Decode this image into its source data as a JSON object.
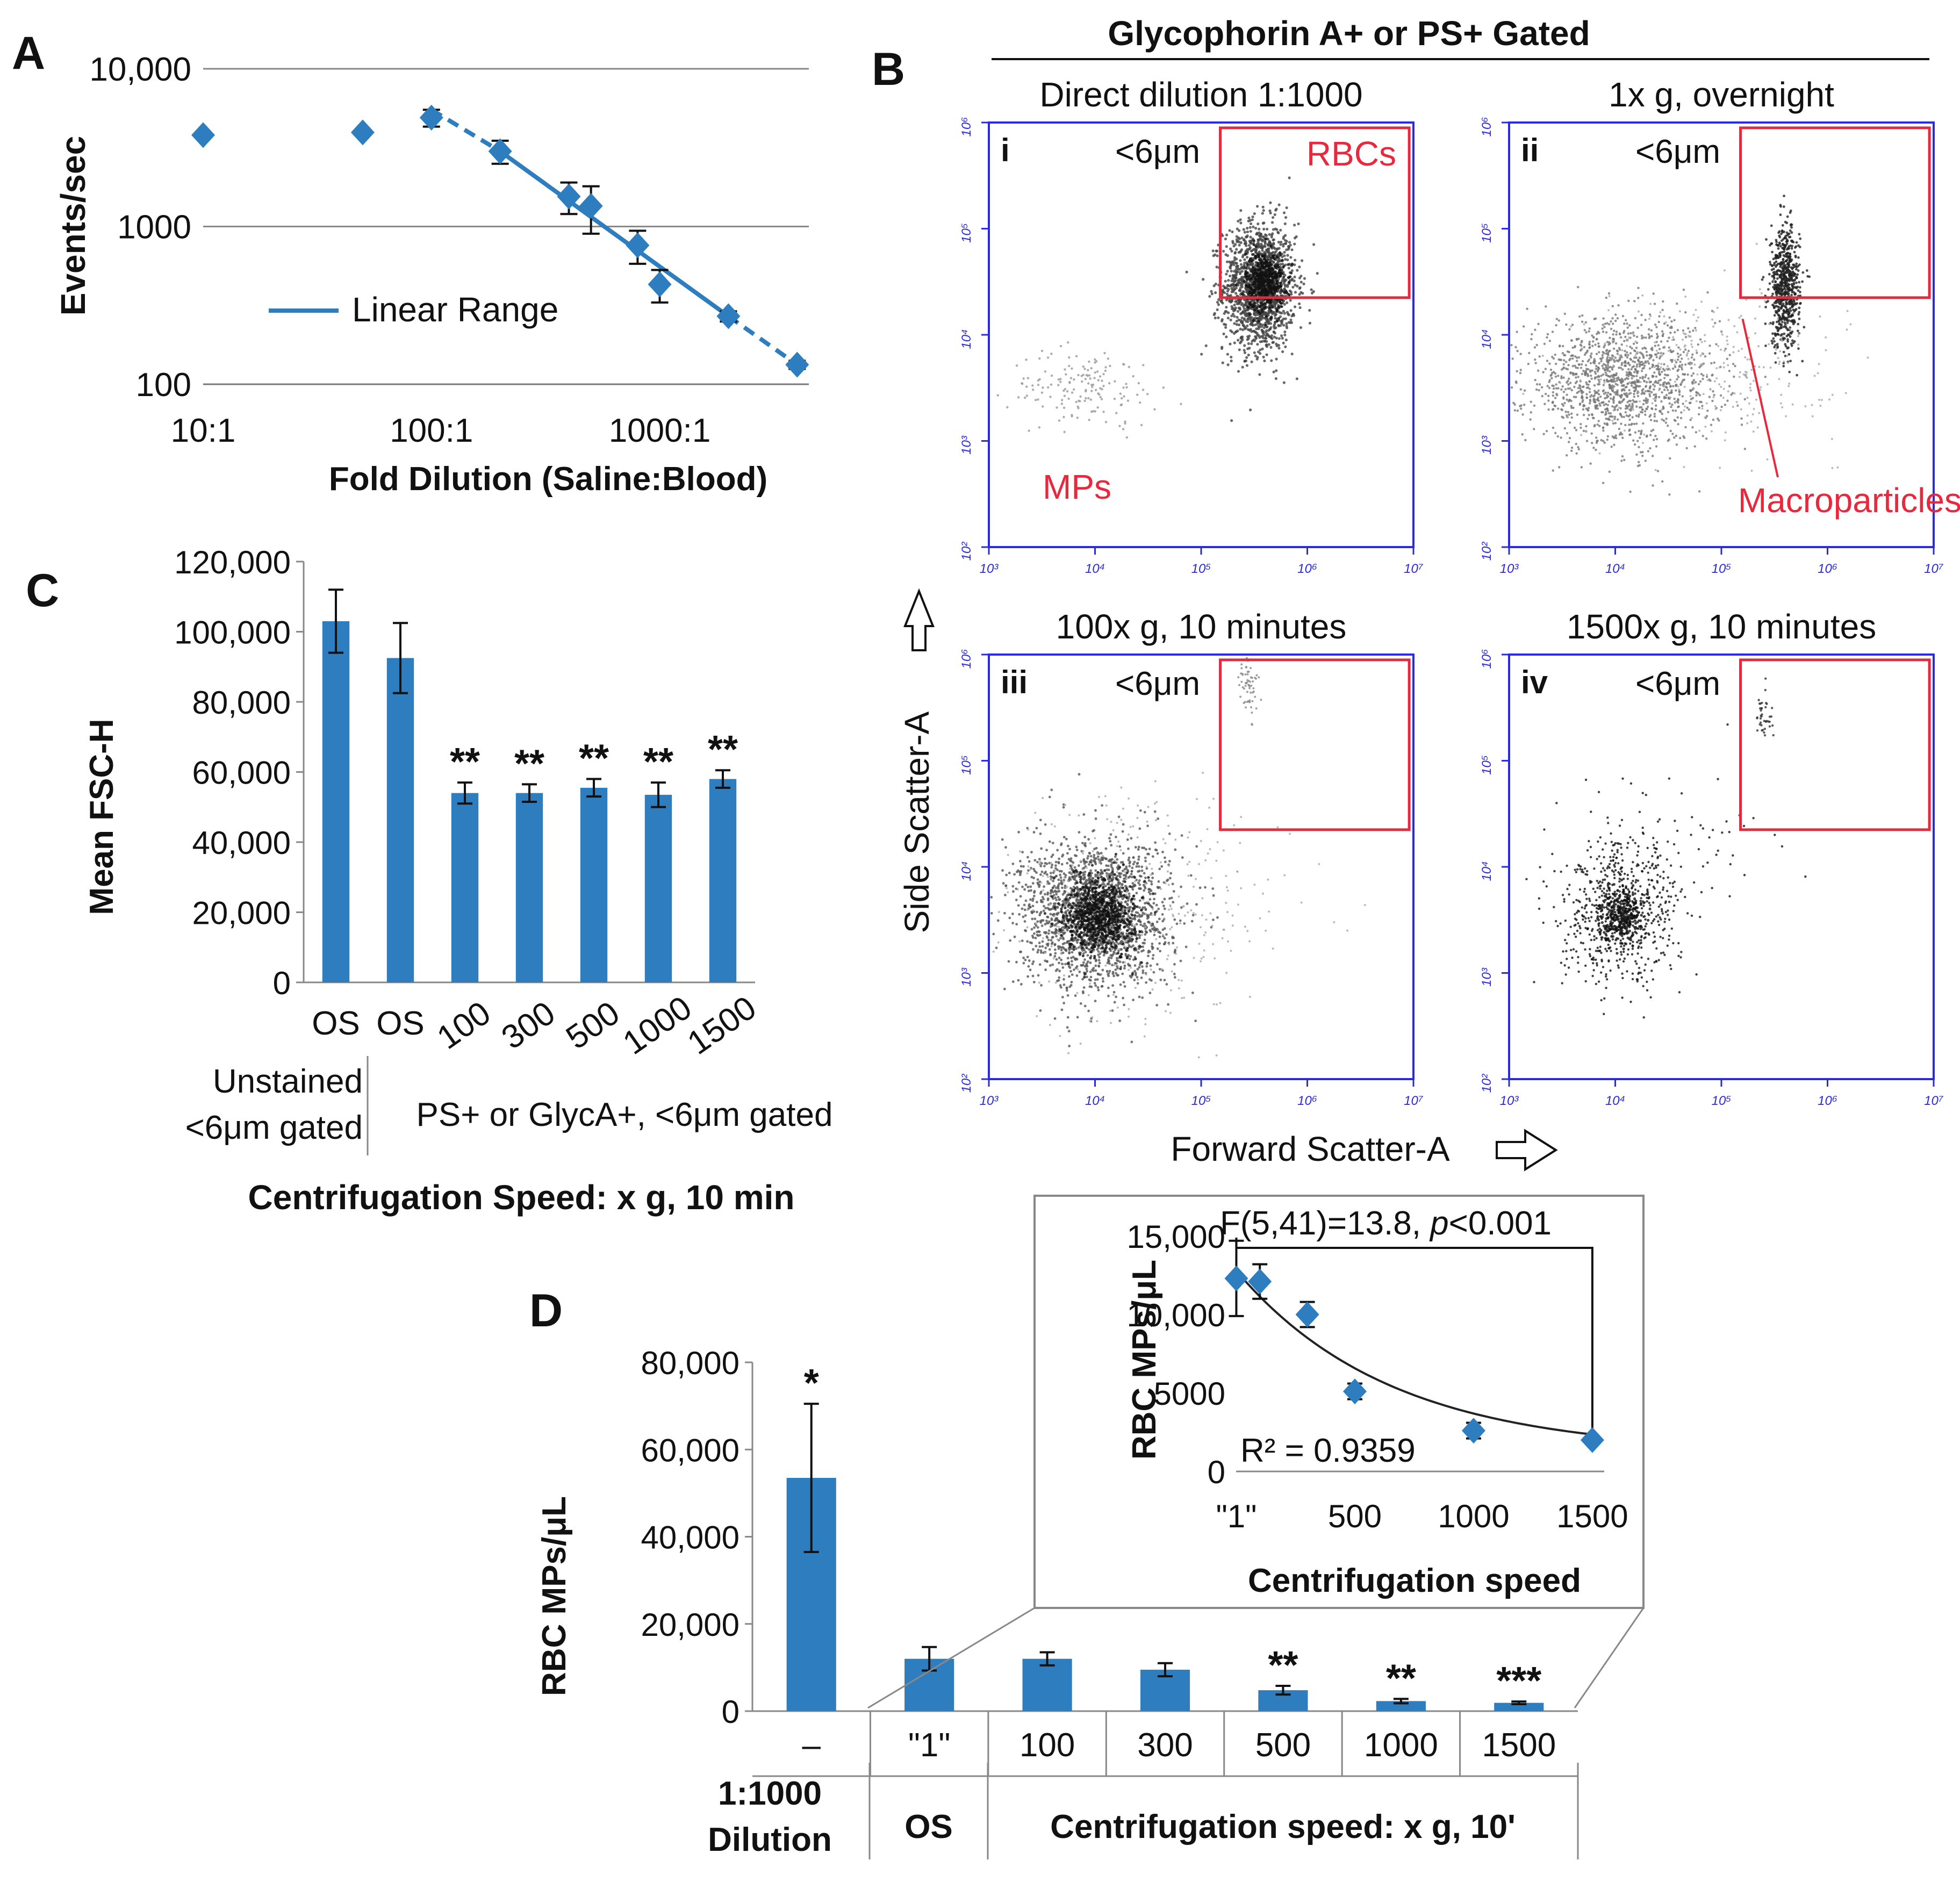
{
  "colors": {
    "bar": "#2e7ebf",
    "marker": "#2e7ebf",
    "gate": "#e8283c",
    "plot_frame": "#2b2bd9",
    "text": "#111111",
    "axis": "#666666",
    "dots": "#333333"
  },
  "panels": {
    "a": {
      "letter": "A"
    },
    "b": {
      "letter": "B",
      "header": "Glycophorin A+ or PS+ Gated",
      "y_axis_label": "Side Scatter-A",
      "x_axis_label": "Forward Scatter-A",
      "tick_labels": [
        "10³",
        "10⁴",
        "10⁵",
        "10⁶",
        "10⁷"
      ],
      "y_tick_labels": [
        "10²",
        "10³",
        "10⁴",
        "10⁵",
        "10⁶"
      ],
      "subplots": [
        {
          "numeral": "i",
          "title": "Direct dilution 1:1000",
          "size_label": "<6μm",
          "gate_label": "RBCs",
          "extra_label": "MPs"
        },
        {
          "numeral": "ii",
          "title": "1x g, overnight",
          "size_label": "<6μm",
          "gate_label": "",
          "extra_label": "Macroparticles"
        },
        {
          "numeral": "iii",
          "title": "100x g, 10 minutes",
          "size_label": "<6μm",
          "gate_label": "",
          "extra_label": ""
        },
        {
          "numeral": "iv",
          "title": "1500x g, 10 minutes",
          "size_label": "<6μm",
          "gate_label": "",
          "extra_label": ""
        }
      ]
    },
    "c": {
      "letter": "C"
    },
    "d": {
      "letter": "D"
    }
  },
  "chart_data": [
    {
      "id": "A",
      "type": "scatter",
      "xscale": "log",
      "yscale": "log",
      "xlabel": "Fold Dilution (Saline:Blood)",
      "ylabel": "Events/sec",
      "xlim": [
        10,
        4500
      ],
      "ylim": [
        100,
        10000
      ],
      "x_tick_labels": [
        "10:1",
        "100:1",
        "1000:1"
      ],
      "y_tick_labels": [
        "100",
        "1000",
        "10,000"
      ],
      "legend": "Linear Range",
      "legend_position": "bottom-left",
      "points": [
        {
          "x": 10,
          "y": 3800,
          "err": 0
        },
        {
          "x": 50,
          "y": 3950,
          "err": 0
        },
        {
          "x": 100,
          "y": 4900,
          "err": 600
        },
        {
          "x": 200,
          "y": 3000,
          "err": 500
        },
        {
          "x": 400,
          "y": 1550,
          "err": 350
        },
        {
          "x": 500,
          "y": 1350,
          "err": 450
        },
        {
          "x": 800,
          "y": 760,
          "err": 180
        },
        {
          "x": 1000,
          "y": 430,
          "err": 100
        },
        {
          "x": 2000,
          "y": 270,
          "err": 20
        },
        {
          "x": 4000,
          "y": 133,
          "err": 8
        }
      ],
      "fit_solid": {
        "x": [
          200,
          2000
        ],
        "y": [
          3000,
          270
        ]
      },
      "fit_dashed": [
        {
          "x": [
            100,
            200
          ],
          "y": [
            5500,
            3000
          ]
        },
        {
          "x": [
            2000,
            4000
          ],
          "y": [
            270,
            133
          ]
        }
      ]
    },
    {
      "id": "C",
      "type": "bar",
      "ylabel": "Mean FSC-H",
      "xlabel": "Centrifugation Speed: x g, 10 min",
      "ylim": [
        0,
        120000
      ],
      "y_tick_labels": [
        "0",
        "20,000",
        "40,000",
        "60,000",
        "80,000",
        "100,000",
        "120,000"
      ],
      "categories": [
        "OS",
        "OS",
        "100",
        "300",
        "500",
        "1000",
        "1500"
      ],
      "values": [
        103000,
        92500,
        54000,
        54000,
        55500,
        53500,
        58000
      ],
      "errors": [
        9000,
        10000,
        3000,
        2500,
        2500,
        3500,
        2500
      ],
      "significance": [
        "",
        "",
        "**",
        "**",
        "**",
        "**",
        "**"
      ],
      "group_labels": [
        "Unstained <6μm gated",
        "PS+ or GlycA+, <6μm gated"
      ]
    },
    {
      "id": "D",
      "type": "bar",
      "ylabel": "RBC MPs/μL",
      "ylim": [
        0,
        80000
      ],
      "y_tick_labels": [
        "0",
        "20,000",
        "40,000",
        "60,000",
        "80,000"
      ],
      "categories": [
        "–",
        "\"1\"",
        "100",
        "300",
        "500",
        "1000",
        "1500"
      ],
      "values": [
        53500,
        12000,
        12000,
        9500,
        4800,
        2300,
        1900
      ],
      "errors": [
        17000,
        2700,
        1500,
        1500,
        1000,
        500,
        300
      ],
      "significance": [
        "*",
        "",
        "",
        "",
        "**",
        "**",
        "***"
      ],
      "group_labels": [
        "1:1000 Dilution",
        "OS",
        "Centrifugation speed: x g, 10'"
      ]
    },
    {
      "id": "D-inset",
      "type": "scatter",
      "xlabel": "Centrifugation speed",
      "ylabel": "RBC MPs/μL",
      "xlim": [
        0,
        1550
      ],
      "ylim": [
        0,
        15000
      ],
      "x_tick_labels": [
        "\"1\"",
        "500",
        "1000",
        "1500"
      ],
      "y_tick_labels": [
        "0",
        "5000",
        "10,000",
        "15,000"
      ],
      "points": [
        {
          "x": 1,
          "y": 12300,
          "err": 2400
        },
        {
          "x": 100,
          "y": 12100,
          "err": 1100
        },
        {
          "x": 300,
          "y": 10000,
          "err": 800
        },
        {
          "x": 500,
          "y": 5100,
          "err": 500
        },
        {
          "x": 1000,
          "y": 2600,
          "err": 500
        },
        {
          "x": 1500,
          "y": 2000,
          "err": 200
        }
      ],
      "stat_text": "F(5,41)=13.8, ",
      "stat_p": "p",
      "stat_threshold": "<0.001",
      "r2": "R² = 0.9359"
    }
  ]
}
